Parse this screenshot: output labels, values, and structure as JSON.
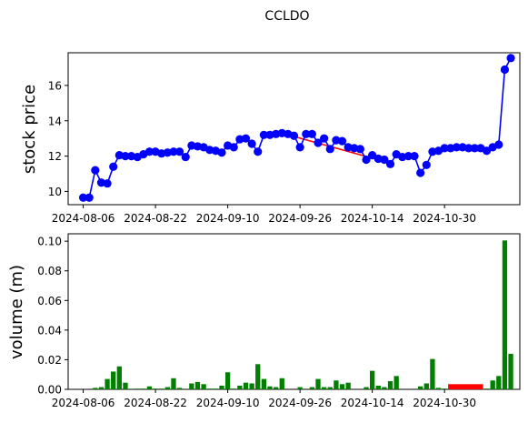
{
  "figure_title": "CCLDO",
  "colors": {
    "price_line": "#0000ff",
    "price_marker": "#0000ff",
    "trend_line": "#ff0000",
    "volume_bar": "#007f00",
    "volume_bar_highlight": "#ff0000",
    "price_label": "#0000ff",
    "volume_label": "#007f00"
  },
  "chart_data": [
    {
      "type": "line",
      "title": "",
      "ylabel": "stock price",
      "xlabel": "",
      "grid": false,
      "x_tick_labels": [
        "2024-08-06",
        "2024-08-22",
        "2024-09-10",
        "2024-09-26",
        "2024-10-14",
        "2024-10-30"
      ],
      "x_tick_index": [
        0,
        12,
        24,
        36,
        48,
        60
      ],
      "y_ticks": [
        10,
        12,
        14,
        16
      ],
      "ylim": [
        9.25,
        17.85
      ],
      "xlim": [
        -2.5,
        72.5
      ],
      "series": [
        {
          "values": [
            9.65,
            9.65,
            11.2,
            10.5,
            10.45,
            11.4,
            12.05,
            12.0,
            12.0,
            11.95,
            12.1,
            12.25,
            12.25,
            12.15,
            12.2,
            12.25,
            12.25,
            11.95,
            12.6,
            12.55,
            12.5,
            12.35,
            12.3,
            12.2,
            12.6,
            12.5,
            12.95,
            13.0,
            12.7,
            12.25,
            13.2,
            13.2,
            13.25,
            13.3,
            13.25,
            13.15,
            12.5,
            13.25,
            13.25,
            12.75,
            13.0,
            12.4,
            12.9,
            12.85,
            12.5,
            12.45,
            12.4,
            11.8,
            12.05,
            11.85,
            11.8,
            11.55,
            12.1,
            11.95,
            12.0,
            12.0,
            11.05,
            11.5,
            12.25,
            12.3,
            12.45,
            12.45,
            12.5,
            12.5,
            12.45,
            12.45,
            12.45,
            12.3,
            12.5,
            12.65,
            16.9,
            17.55
          ]
        }
      ],
      "trend_segments": [
        {
          "from": [
            6,
            12.05
          ],
          "to": [
            10,
            11.95
          ]
        },
        {
          "from": [
            18,
            12.6
          ],
          "to": [
            23,
            12.25
          ]
        },
        {
          "from": [
            33,
            13.3
          ],
          "to": [
            51,
            11.6
          ]
        },
        {
          "from": [
            62,
            12.5
          ],
          "to": [
            67,
            12.3
          ]
        }
      ]
    },
    {
      "type": "bar",
      "title": "",
      "ylabel": "volume (m)",
      "xlabel": "",
      "grid": false,
      "x_tick_labels": [
        "2024-08-06",
        "2024-08-22",
        "2024-09-10",
        "2024-09-26",
        "2024-10-14",
        "2024-10-30"
      ],
      "x_tick_index": [
        0,
        12,
        24,
        36,
        48,
        60
      ],
      "y_ticks": [
        0.0,
        0.02,
        0.04,
        0.06,
        0.08,
        0.1
      ],
      "y_tick_labels": [
        "0.00",
        "0.02",
        "0.04",
        "0.06",
        "0.08",
        "0.10"
      ],
      "ylim": [
        0,
        0.105
      ],
      "xlim": [
        -2.5,
        72.5
      ],
      "series": [
        {
          "values": [
            0.0,
            0.0,
            0.001,
            0.0015,
            0.007,
            0.012,
            0.0155,
            0.0045,
            0.0,
            0.0005,
            0.0005,
            0.002,
            0.0005,
            0.0005,
            0.0015,
            0.0075,
            0.001,
            0.0,
            0.004,
            0.005,
            0.0035,
            0.0005,
            0.0005,
            0.0025,
            0.0115,
            0.0005,
            0.0025,
            0.0045,
            0.004,
            0.017,
            0.007,
            0.002,
            0.0015,
            0.0075,
            0.0,
            0.0,
            0.0015,
            0.0,
            0.0015,
            0.007,
            0.0015,
            0.0015,
            0.006,
            0.0035,
            0.0045,
            0.0,
            0.0,
            0.0015,
            0.0125,
            0.0025,
            0.0015,
            0.0055,
            0.009,
            0.0,
            0.0,
            0.0,
            0.002,
            0.004,
            0.0205,
            0.001,
            0.0005,
            0.0,
            0.0,
            0.0,
            0.0,
            0.0,
            0.0,
            0.0005,
            0.006,
            0.009,
            0.1005,
            0.024
          ]
        }
      ],
      "highlight_band": {
        "from": 61,
        "to": 66,
        "value": 0.0035
      }
    }
  ]
}
